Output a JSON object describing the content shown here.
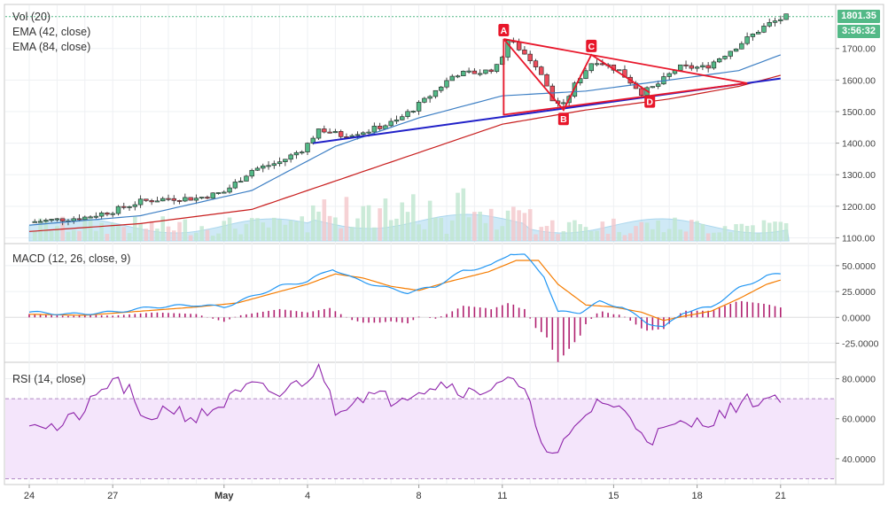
{
  "colors": {
    "up": "#53b987",
    "down": "#eb4d5c",
    "ema42": "#3d7fc4",
    "ema84": "#c81e1e",
    "trendline": "#2020c8",
    "pattern": "#e8162a",
    "macd": "#2196f3",
    "signal": "#f57c00",
    "hist": "#b0206f",
    "rsi": "#8e24aa",
    "rsi_band": "#f4e5fb",
    "vol_area": "#a8d8f0"
  },
  "legends": {
    "price": [
      "Vol (20)",
      "EMA (42, close)",
      "EMA (84, close)"
    ],
    "macd": "MACD (12, 26, close, 9)",
    "rsi": "RSI (14, close)"
  },
  "tags": {
    "last_price": "1801.35",
    "countdown": "3:56:32"
  },
  "pattern_labels": [
    "A",
    "B",
    "C",
    "D"
  ],
  "chart_data": [
    {
      "type": "candlestick",
      "name": "price",
      "ylim": [
        1090,
        1820
      ],
      "yticks": [
        "1100.00",
        "1200.00",
        "1300.00",
        "1400.00",
        "1500.00",
        "1600.00",
        "1700.00"
      ],
      "x_ticks": [
        {
          "label": "24",
          "day": 0
        },
        {
          "label": "27",
          "day": 3
        },
        {
          "label": "May",
          "day": 7,
          "bold": true
        },
        {
          "label": "4",
          "day": 10
        },
        {
          "label": "8",
          "day": 14
        },
        {
          "label": "11",
          "day": 17
        },
        {
          "label": "15",
          "day": 21
        },
        {
          "label": "18",
          "day": 24
        },
        {
          "label": "21",
          "day": 27
        }
      ],
      "anchors": [
        [
          0,
          1150
        ],
        [
          2,
          1165
        ],
        [
          3,
          1185
        ],
        [
          4,
          1215
        ],
        [
          5,
          1225
        ],
        [
          6,
          1225
        ],
        [
          7,
          1245
        ],
        [
          8,
          1315
        ],
        [
          9,
          1340
        ],
        [
          9.9,
          1385
        ],
        [
          10.4,
          1445
        ],
        [
          11.2,
          1425
        ],
        [
          12.2,
          1440
        ],
        [
          13.2,
          1470
        ],
        [
          14.2,
          1535
        ],
        [
          15.3,
          1620
        ],
        [
          16.3,
          1625
        ],
        [
          16.9,
          1645
        ],
        [
          17.15,
          1730
        ],
        [
          17.6,
          1700
        ],
        [
          18.3,
          1640
        ],
        [
          18.8,
          1535
        ],
        [
          19.2,
          1520
        ],
        [
          19.7,
          1600
        ],
        [
          20.3,
          1665
        ],
        [
          21.2,
          1630
        ],
        [
          22.0,
          1560
        ],
        [
          22.5,
          1580
        ],
        [
          23.3,
          1640
        ],
        [
          24.3,
          1640
        ],
        [
          25.3,
          1700
        ],
        [
          26.5,
          1775
        ],
        [
          27.2,
          1801
        ]
      ],
      "ema42_anchors": [
        [
          0,
          1140
        ],
        [
          4,
          1170
        ],
        [
          8,
          1250
        ],
        [
          11,
          1390
        ],
        [
          14,
          1480
        ],
        [
          17,
          1550
        ],
        [
          20,
          1565
        ],
        [
          23,
          1600
        ],
        [
          25.5,
          1630
        ],
        [
          27,
          1680
        ]
      ],
      "ema84_anchors": [
        [
          0,
          1120
        ],
        [
          4,
          1145
        ],
        [
          8,
          1190
        ],
        [
          11,
          1280
        ],
        [
          14,
          1370
        ],
        [
          17,
          1460
        ],
        [
          20,
          1505
        ],
        [
          23,
          1540
        ],
        [
          25.5,
          1580
        ],
        [
          27,
          1615
        ]
      ],
      "trendline": [
        [
          10.2,
          1400
        ],
        [
          27,
          1605
        ]
      ],
      "pattern": {
        "A": [
          17.05,
          1730
        ],
        "B": [
          19.2,
          1505
        ],
        "C": [
          20.2,
          1680
        ],
        "D": [
          22.3,
          1560
        ],
        "apex": [
          25.8,
          1590
        ],
        "A_base": [
          17.05,
          1490
        ]
      }
    },
    {
      "type": "line",
      "name": "MACD",
      "ylim": [
        -40,
        67
      ],
      "yticks": [
        "-25.0000",
        "0.0000",
        "25.0000",
        "50.0000"
      ],
      "macd_anchors": [
        [
          0,
          5
        ],
        [
          1.5,
          3
        ],
        [
          3,
          5
        ],
        [
          4.5,
          10
        ],
        [
          6,
          12
        ],
        [
          7,
          10
        ],
        [
          8,
          20
        ],
        [
          9,
          30
        ],
        [
          10,
          35
        ],
        [
          10.9,
          47
        ],
        [
          11.6,
          38
        ],
        [
          12.6,
          30
        ],
        [
          13.6,
          24
        ],
        [
          14.6,
          30
        ],
        [
          15.6,
          45
        ],
        [
          16.6,
          50
        ],
        [
          17.3,
          62
        ],
        [
          17.8,
          60
        ],
        [
          18.5,
          40
        ],
        [
          19,
          5
        ],
        [
          19.8,
          5
        ],
        [
          20.5,
          15
        ],
        [
          21.3,
          10
        ],
        [
          22.2,
          -5
        ],
        [
          22.8,
          -10
        ],
        [
          23.5,
          5
        ],
        [
          24.5,
          10
        ],
        [
          25.5,
          28
        ],
        [
          26.5,
          40
        ],
        [
          27,
          42
        ]
      ],
      "signal_anchors": [
        [
          0,
          3
        ],
        [
          2,
          2
        ],
        [
          4,
          6
        ],
        [
          6,
          10
        ],
        [
          7.5,
          14
        ],
        [
          9,
          25
        ],
        [
          10,
          32
        ],
        [
          11,
          42
        ],
        [
          12,
          38
        ],
        [
          13,
          30
        ],
        [
          14,
          26
        ],
        [
          15,
          34
        ],
        [
          16.5,
          44
        ],
        [
          17.5,
          55
        ],
        [
          18.3,
          55
        ],
        [
          19,
          32
        ],
        [
          20,
          12
        ],
        [
          21,
          10
        ],
        [
          22,
          5
        ],
        [
          22.8,
          -3
        ],
        [
          23.5,
          1
        ],
        [
          24.5,
          6
        ],
        [
          25.5,
          18
        ],
        [
          26.5,
          32
        ],
        [
          27,
          36
        ]
      ]
    },
    {
      "type": "line",
      "name": "RSI",
      "ylim": [
        28,
        86
      ],
      "yticks": [
        "40.0000",
        "60.0000",
        "80.0000"
      ],
      "band": [
        30,
        70
      ],
      "anchors": [
        [
          0,
          60
        ],
        [
          1,
          55
        ],
        [
          2,
          64
        ],
        [
          3,
          80
        ],
        [
          3.7,
          72
        ],
        [
          4,
          58
        ],
        [
          5,
          66
        ],
        [
          6,
          60
        ],
        [
          7,
          68
        ],
        [
          8,
          76
        ],
        [
          9,
          72
        ],
        [
          10.5,
          85
        ],
        [
          11,
          65
        ],
        [
          12,
          72
        ],
        [
          13,
          70
        ],
        [
          14,
          75
        ],
        [
          15,
          78
        ],
        [
          16,
          72
        ],
        [
          17,
          80
        ],
        [
          17.7,
          75
        ],
        [
          18.3,
          55
        ],
        [
          18.8,
          40
        ],
        [
          19.3,
          48
        ],
        [
          20,
          62
        ],
        [
          20.5,
          70
        ],
        [
          21.5,
          62
        ],
        [
          22.3,
          50
        ],
        [
          23,
          55
        ],
        [
          24,
          58
        ],
        [
          25,
          62
        ],
        [
          25.5,
          68
        ],
        [
          26.5,
          70
        ],
        [
          27,
          72
        ]
      ]
    }
  ]
}
